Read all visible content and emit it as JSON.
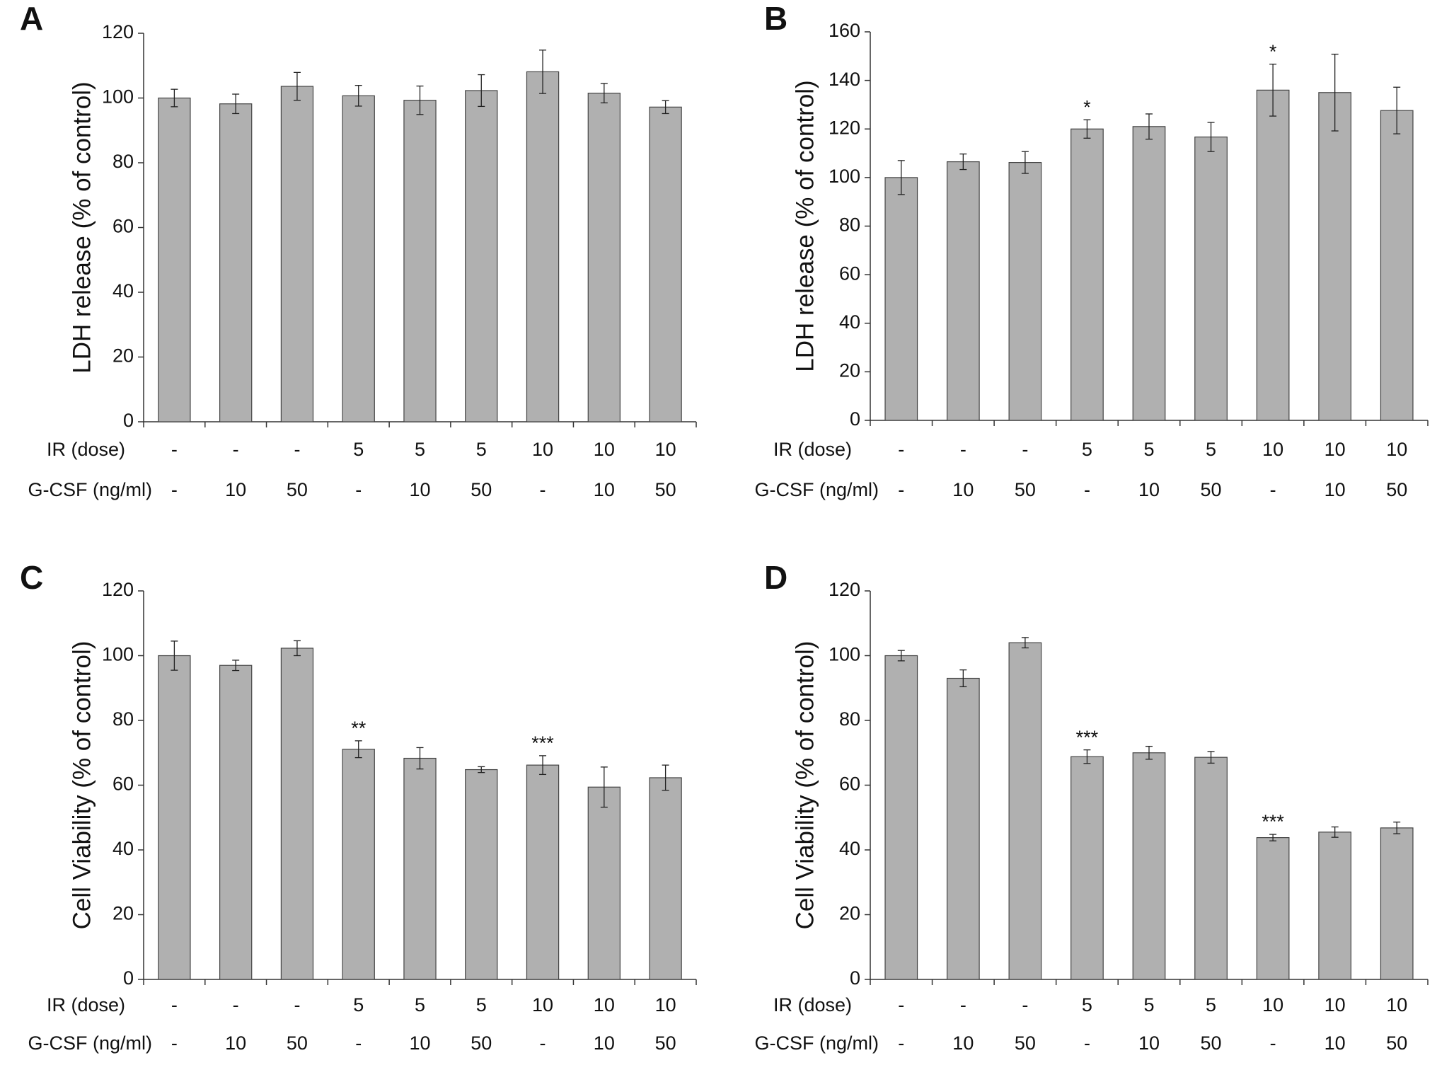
{
  "chart_data": [
    {
      "type": "bar",
      "panel": "A",
      "ylabel": "LDH release (% of control)",
      "ylim": [
        0,
        120
      ],
      "yticks": [
        0,
        20,
        40,
        60,
        80,
        100,
        120
      ],
      "color": "#b0b0b0",
      "values": [
        100,
        98.2,
        103.6,
        100.7,
        99.3,
        102.3,
        108.1,
        101.5,
        97.2
      ],
      "errors": [
        2.7,
        3,
        4.3,
        3.2,
        4.4,
        4.9,
        6.7,
        3,
        2
      ],
      "significance": [
        null,
        null,
        null,
        null,
        null,
        null,
        null,
        null,
        null
      ],
      "rows": [
        {
          "name": "IR (dose)",
          "labels": [
            "-",
            "-",
            "-",
            "5",
            "5",
            "5",
            "10",
            "10",
            "10"
          ]
        },
        {
          "name": "G-CSF (ng/ml)",
          "labels": [
            "-",
            "10",
            "50",
            "-",
            "10",
            "50",
            "-",
            "10",
            "50"
          ]
        }
      ]
    },
    {
      "type": "bar",
      "panel": "B",
      "ylabel": "LDH release (% of control)",
      "ylim": [
        0,
        160
      ],
      "yticks": [
        0,
        20,
        40,
        60,
        80,
        100,
        120,
        140,
        160
      ],
      "color": "#b0b0b0",
      "values": [
        100,
        106.5,
        106.2,
        120,
        121,
        116.7,
        136,
        135,
        127.6
      ],
      "errors": [
        7,
        3.2,
        4.5,
        3.8,
        5.2,
        6,
        10.7,
        15.8,
        9.6
      ],
      "significance": [
        null,
        null,
        null,
        "*",
        null,
        null,
        "*",
        null,
        null
      ],
      "rows": [
        {
          "name": "IR (dose)",
          "labels": [
            "-",
            "-",
            "-",
            "5",
            "5",
            "5",
            "10",
            "10",
            "10"
          ]
        },
        {
          "name": "G-CSF (ng/ml)",
          "labels": [
            "-",
            "10",
            "50",
            "-",
            "10",
            "50",
            "-",
            "10",
            "50"
          ]
        }
      ]
    },
    {
      "type": "bar",
      "panel": "C",
      "ylabel": "Cell Viability (% of control)",
      "ylim": [
        0,
        120
      ],
      "yticks": [
        0,
        20,
        40,
        60,
        80,
        100,
        120
      ],
      "color": "#b0b0b0",
      "values": [
        100,
        97,
        102.3,
        71.1,
        68.3,
        64.8,
        66.2,
        59.4,
        62.3
      ],
      "errors": [
        4.5,
        1.6,
        2.3,
        2.6,
        3.3,
        0.9,
        2.9,
        6.2,
        3.9
      ],
      "significance": [
        null,
        null,
        null,
        "**",
        null,
        null,
        "***",
        null,
        null
      ],
      "rows": [
        {
          "name": "IR (dose)",
          "labels": [
            "-",
            "-",
            "-",
            "5",
            "5",
            "5",
            "10",
            "10",
            "10"
          ]
        },
        {
          "name": "G-CSF (ng/ml)",
          "labels": [
            "-",
            "10",
            "50",
            "-",
            "10",
            "50",
            "-",
            "10",
            "50"
          ]
        }
      ]
    },
    {
      "type": "bar",
      "panel": "D",
      "ylabel": "Cell Viability (% of control)",
      "ylim": [
        0,
        120
      ],
      "yticks": [
        0,
        20,
        40,
        60,
        80,
        100,
        120
      ],
      "color": "#b0b0b0",
      "values": [
        100,
        93,
        104,
        68.8,
        70,
        68.6,
        43.8,
        45.5,
        46.8
      ],
      "errors": [
        1.6,
        2.6,
        1.6,
        2.1,
        2,
        1.8,
        1,
        1.6,
        1.8
      ],
      "significance": [
        null,
        null,
        null,
        "***",
        null,
        null,
        "***",
        null,
        null
      ],
      "rows": [
        {
          "name": "IR (dose)",
          "labels": [
            "-",
            "-",
            "-",
            "5",
            "5",
            "5",
            "10",
            "10",
            "10"
          ]
        },
        {
          "name": "G-CSF (ng/ml)",
          "labels": [
            "-",
            "10",
            "50",
            "-",
            "10",
            "50",
            "-",
            "10",
            "50"
          ]
        }
      ]
    }
  ]
}
